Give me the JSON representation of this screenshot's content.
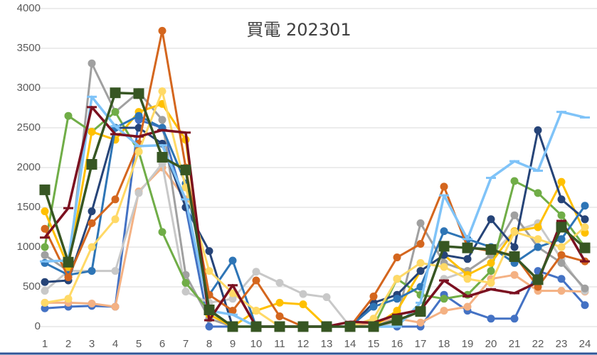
{
  "chart_data": {
    "type": "line",
    "title": "買電 202301",
    "x": [
      1,
      2,
      3,
      4,
      5,
      6,
      7,
      8,
      9,
      10,
      11,
      12,
      13,
      14,
      15,
      16,
      17,
      18,
      19,
      20,
      21,
      22,
      23,
      24
    ],
    "xlim": [
      1,
      24
    ],
    "xticks": [
      1,
      2,
      3,
      4,
      5,
      6,
      7,
      8,
      9,
      10,
      11,
      12,
      13,
      14,
      15,
      16,
      17,
      18,
      19,
      20,
      21,
      22,
      23,
      24
    ],
    "ylim": [
      0,
      4000
    ],
    "yticks": [
      0,
      500,
      1000,
      1500,
      2000,
      2500,
      3000,
      3500,
      4000
    ],
    "grid": true,
    "series": [
      {
        "color": "#4472c4",
        "marker": "circle",
        "values": [
          230,
          250,
          260,
          250,
          2600,
          2500,
          1500,
          0,
          0,
          0,
          0,
          0,
          0,
          0,
          0,
          0,
          0,
          400,
          200,
          100,
          100,
          700,
          600,
          270
        ]
      },
      {
        "color": "#f4b183",
        "marker": "circle",
        "values": [
          300,
          300,
          290,
          250,
          1700,
          2000,
          1600,
          200,
          0,
          0,
          0,
          0,
          0,
          0,
          50,
          100,
          50,
          200,
          250,
          600,
          650,
          450,
          450,
          440
        ]
      },
      {
        "color": "#c8c8c8",
        "marker": "circle",
        "values": [
          450,
          700,
          700,
          700,
          1680,
          2050,
          440,
          300,
          350,
          690,
          550,
          410,
          370,
          0,
          0,
          50,
          200,
          600,
          700,
          900,
          1200,
          1300,
          850,
          450
        ]
      },
      {
        "color": "#a0a0a0",
        "marker": "circle",
        "values": [
          900,
          700,
          3310,
          2700,
          2950,
          2600,
          650,
          100,
          0,
          0,
          0,
          0,
          0,
          0,
          0,
          100,
          1300,
          800,
          700,
          900,
          1400,
          1000,
          800,
          480
        ]
      },
      {
        "color": "#70ad47",
        "marker": "circle",
        "values": [
          1000,
          2650,
          2450,
          2700,
          2200,
          1190,
          550,
          200,
          0,
          0,
          0,
          0,
          0,
          0,
          0,
          600,
          400,
          350,
          400,
          700,
          1830,
          1680,
          1400,
          1000
        ]
      },
      {
        "color": "#ffc000",
        "marker": "circle",
        "values": [
          1450,
          750,
          2450,
          2350,
          2700,
          2800,
          2350,
          150,
          0,
          200,
          300,
          280,
          0,
          0,
          0,
          200,
          700,
          900,
          650,
          800,
          1200,
          1250,
          1820,
          1180
        ]
      },
      {
        "color": "#264478",
        "marker": "circle",
        "values": [
          560,
          580,
          1450,
          2500,
          2500,
          2300,
          1500,
          950,
          0,
          0,
          0,
          0,
          0,
          0,
          300,
          400,
          700,
          900,
          850,
          1350,
          1000,
          2470,
          1600,
          1350
        ]
      },
      {
        "color": "#2e75b6",
        "marker": "circle",
        "values": [
          800,
          650,
          700,
          2500,
          2650,
          2500,
          1800,
          400,
          830,
          0,
          0,
          0,
          0,
          0,
          250,
          350,
          500,
          1200,
          1100,
          1000,
          800,
          1000,
          1100,
          1520
        ]
      },
      {
        "color": "#d4661e",
        "marker": "circle",
        "values": [
          1230,
          620,
          1300,
          1600,
          2300,
          3720,
          2000,
          400,
          200,
          580,
          130,
          0,
          0,
          0,
          380,
          870,
          1040,
          1760,
          1000,
          950,
          900,
          500,
          900,
          820
        ]
      },
      {
        "color": "#ffd966",
        "marker": "circle",
        "values": [
          300,
          350,
          1000,
          1350,
          2200,
          2960,
          1750,
          700,
          420,
          200,
          0,
          0,
          0,
          0,
          100,
          600,
          800,
          750,
          600,
          550,
          1190,
          1100,
          1000,
          1250
        ]
      },
      {
        "color": "#7fc3f8",
        "marker": "dash",
        "values": [
          820,
          830,
          2890,
          2520,
          2270,
          2280,
          1600,
          200,
          150,
          0,
          0,
          0,
          0,
          0,
          0,
          0,
          300,
          1650,
          1100,
          1870,
          2080,
          1960,
          2700,
          2630
        ]
      },
      {
        "color": "#7b1020",
        "marker": "dash",
        "values": [
          1120,
          1490,
          2760,
          2420,
          2390,
          2470,
          2440,
          80,
          520,
          0,
          0,
          0,
          0,
          60,
          50,
          150,
          210,
          580,
          380,
          470,
          420,
          560,
          1330,
          820
        ]
      },
      {
        "color": "#375623",
        "marker": "square",
        "values": [
          1720,
          810,
          2040,
          2940,
          2930,
          2130,
          1970,
          210,
          0,
          0,
          0,
          0,
          0,
          0,
          0,
          80,
          190,
          1010,
          990,
          970,
          880,
          590,
          1250,
          990
        ]
      }
    ]
  }
}
